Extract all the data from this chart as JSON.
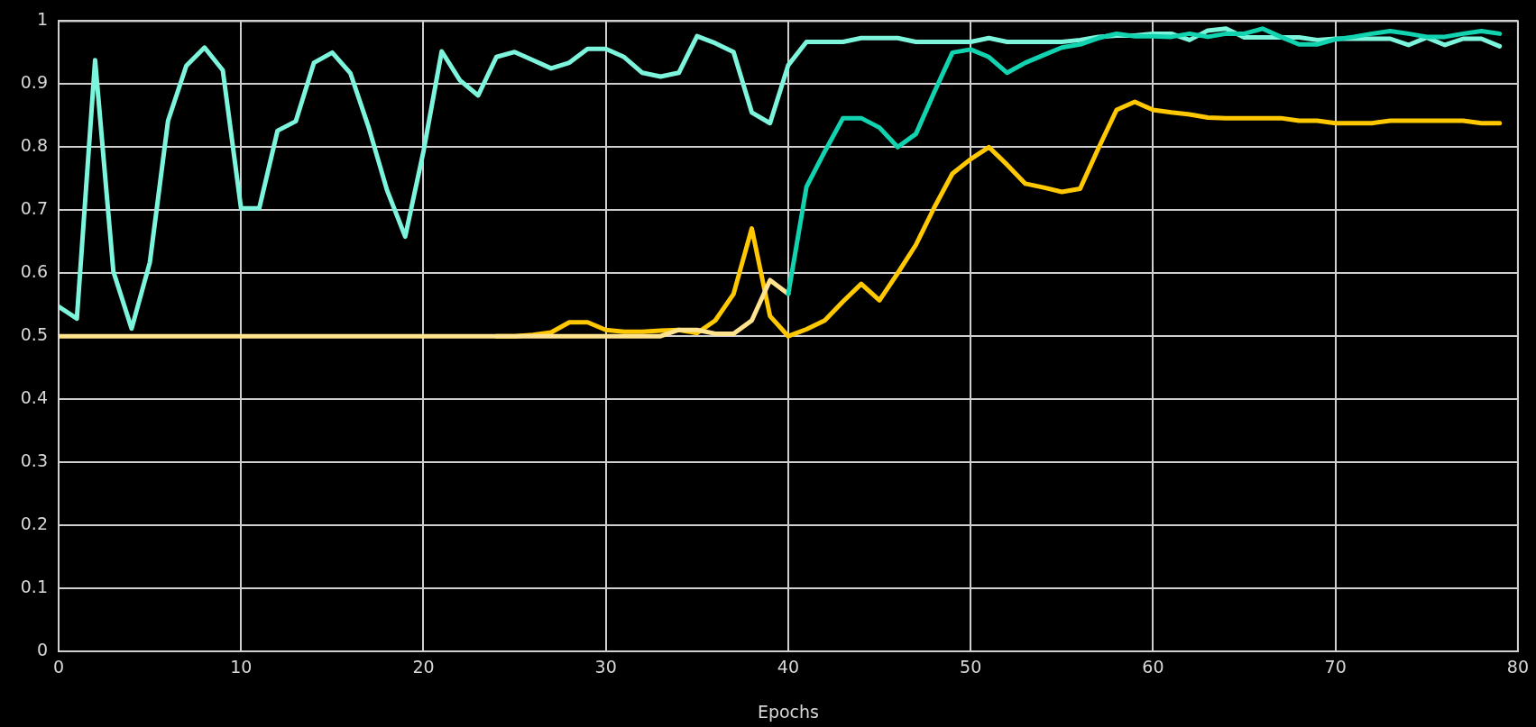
{
  "chart_data": {
    "type": "line",
    "xlabel": "Epochs",
    "xlim": [
      0,
      80
    ],
    "ylim": [
      0,
      1
    ],
    "xticks": [
      0,
      10,
      20,
      30,
      40,
      50,
      60,
      70,
      80
    ],
    "yticks": [
      0,
      0.1,
      0.2,
      0.3,
      0.4,
      0.5,
      0.6,
      0.7,
      0.8,
      0.9,
      1
    ],
    "grid": true,
    "marker": "none",
    "line_style": "solid",
    "x": [
      0,
      1,
      2,
      3,
      4,
      5,
      6,
      7,
      8,
      9,
      10,
      11,
      12,
      13,
      14,
      15,
      16,
      17,
      18,
      19,
      20,
      21,
      22,
      23,
      24,
      25,
      26,
      27,
      28,
      29,
      30,
      31,
      32,
      33,
      34,
      35,
      36,
      37,
      38,
      39,
      40,
      41,
      42,
      43,
      44,
      45,
      46,
      47,
      48,
      49,
      50,
      51,
      52,
      53,
      54,
      55,
      56,
      57,
      58,
      59,
      60,
      61,
      62,
      63,
      64,
      65,
      66,
      67,
      68,
      69,
      70,
      71,
      72,
      73,
      74,
      75,
      76,
      77,
      78,
      79
    ],
    "series": [
      {
        "color": "#ffc800",
        "values": [
          null,
          null,
          null,
          null,
          null,
          null,
          null,
          null,
          null,
          null,
          null,
          null,
          null,
          null,
          null,
          null,
          null,
          null,
          null,
          null,
          null,
          null,
          null,
          null,
          0.5,
          0.5,
          0.502,
          0.506,
          0.522,
          0.522,
          0.51,
          0.507,
          0.507,
          0.509,
          0.51,
          0.505,
          0.525,
          0.567,
          0.671,
          0.532,
          0.5,
          0.511,
          0.525,
          0.555,
          0.583,
          0.557,
          0.6,
          0.645,
          0.704,
          0.758,
          0.781,
          0.8,
          0.772,
          0.742,
          0.736,
          0.729,
          0.734,
          0.798,
          0.859,
          0.872,
          0.859,
          0.855,
          0.852,
          0.847,
          0.846,
          0.846,
          0.846,
          0.846,
          0.842,
          0.842,
          0.838,
          0.838,
          0.838,
          0.842,
          0.842,
          0.842,
          0.842,
          0.842,
          0.838,
          0.838
        ]
      },
      {
        "color": "#ffe38f",
        "x": [
          0,
          1,
          2,
          3,
          4,
          5,
          6,
          7,
          8,
          9,
          10,
          11,
          12,
          13,
          14,
          15,
          16,
          17,
          18,
          19,
          20,
          21,
          22,
          23,
          24,
          25,
          26,
          27,
          28,
          29,
          30,
          31,
          32,
          33,
          34,
          35,
          36,
          37,
          38,
          39,
          40
        ],
        "values": [
          0.5,
          0.5,
          0.5,
          0.5,
          0.5,
          0.5,
          0.5,
          0.5,
          0.5,
          0.5,
          0.5,
          0.5,
          0.5,
          0.5,
          0.5,
          0.5,
          0.5,
          0.5,
          0.5,
          0.5,
          0.5,
          0.5,
          0.5,
          0.5,
          0.5,
          0.5,
          0.5,
          0.5,
          0.5,
          0.5,
          0.5,
          0.5,
          0.5,
          0.5,
          0.51,
          0.51,
          0.504,
          0.504,
          0.525,
          0.589,
          0.567
        ]
      },
      {
        "color": "#7df5dc",
        "values": [
          0.547,
          0.528,
          0.938,
          0.603,
          0.512,
          0.617,
          0.842,
          0.929,
          0.958,
          0.922,
          0.703,
          0.703,
          0.826,
          0.841,
          0.934,
          0.95,
          0.917,
          0.831,
          0.732,
          0.658,
          0.793,
          0.952,
          0.906,
          0.882,
          0.943,
          0.951,
          0.938,
          0.925,
          0.934,
          0.956,
          0.956,
          0.943,
          0.918,
          0.912,
          0.918,
          0.976,
          0.965,
          0.951,
          0.855,
          0.838,
          0.93,
          0.967,
          0.967,
          0.967,
          0.973,
          0.973,
          0.973,
          0.967,
          0.967,
          0.967,
          0.967,
          0.973,
          0.967,
          0.967,
          0.967,
          0.967,
          0.97,
          0.975,
          0.977,
          0.977,
          0.98,
          0.98,
          0.97,
          0.985,
          0.988,
          0.974,
          0.974,
          0.974,
          0.974,
          0.97,
          0.972,
          0.972,
          0.972,
          0.972,
          0.962,
          0.974,
          0.962,
          0.972,
          0.972,
          0.96
        ]
      },
      {
        "color": "#12d3b0",
        "x": [
          40,
          41,
          42,
          43,
          44,
          45,
          46,
          47,
          48,
          49,
          50,
          51,
          52,
          53,
          54,
          55,
          56,
          57,
          58,
          59,
          60,
          61,
          62,
          63,
          64,
          65,
          66,
          67,
          68,
          69,
          70,
          71,
          72,
          73,
          74,
          75,
          76,
          77,
          78,
          79
        ],
        "values": [
          0.567,
          0.737,
          0.793,
          0.846,
          0.846,
          0.831,
          0.8,
          0.821,
          0.887,
          0.95,
          0.955,
          0.943,
          0.918,
          0.934,
          0.946,
          0.958,
          0.963,
          0.973,
          0.98,
          0.976,
          0.976,
          0.975,
          0.98,
          0.975,
          0.98,
          0.98,
          0.988,
          0.975,
          0.963,
          0.963,
          0.971,
          0.975,
          0.98,
          0.984,
          0.98,
          0.975,
          0.975,
          0.98,
          0.984,
          0.98
        ]
      }
    ]
  }
}
